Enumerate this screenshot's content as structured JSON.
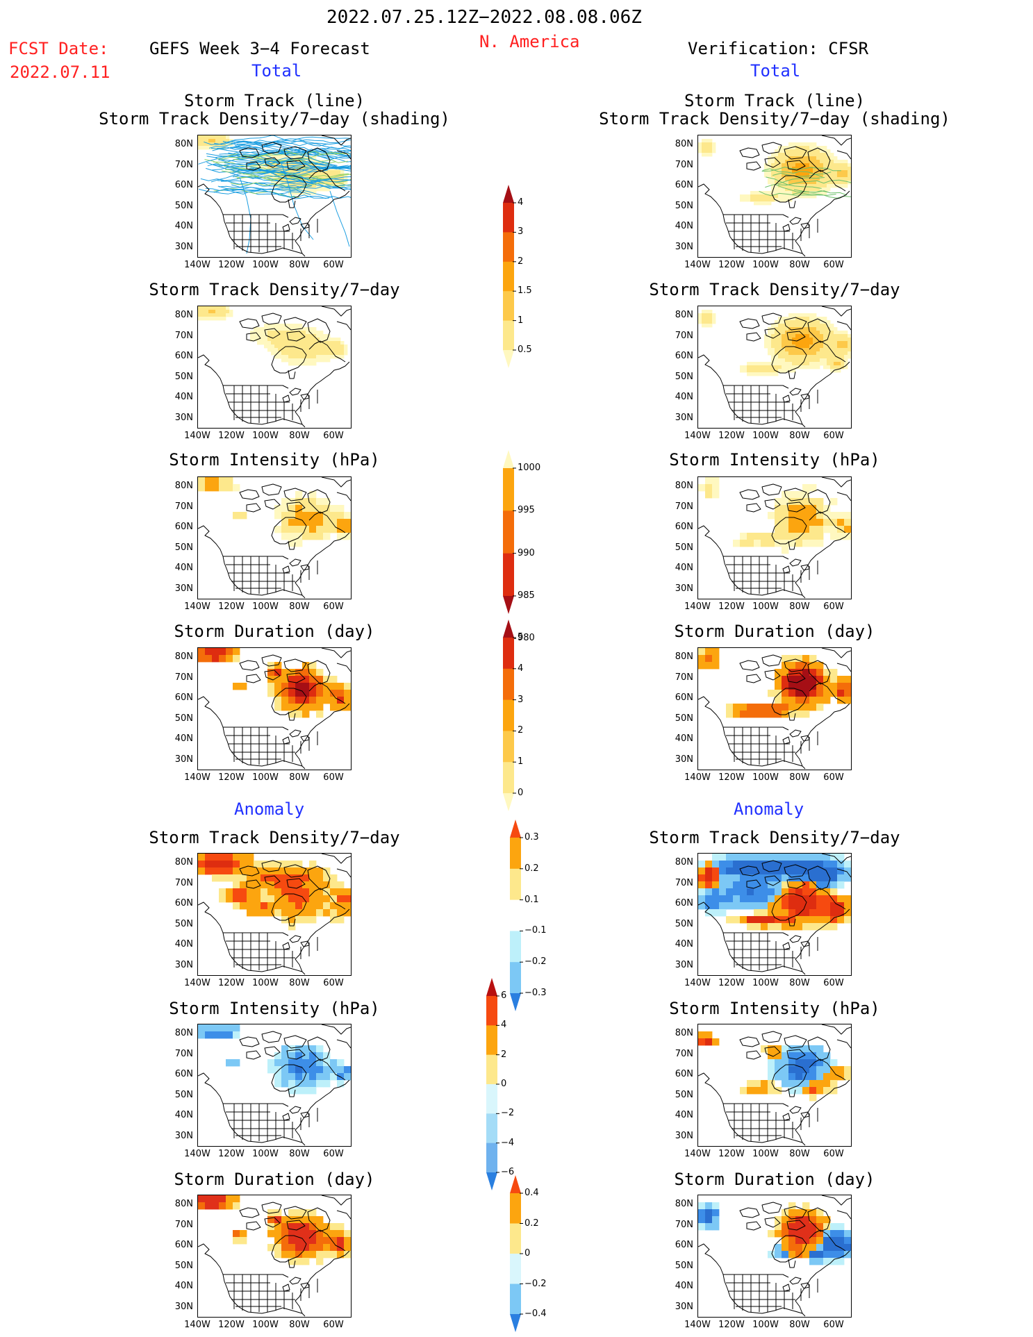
{
  "header": {
    "date_range": "2022.07.25.12Z−2022.08.08.06Z",
    "region": "N. America",
    "fcst_label": "FCST Date:",
    "fcst_date": "2022.07.11",
    "forecast_title": "GEFS Week 3−4 Forecast",
    "verification_title": "Verification: CFSR",
    "total_label": "Total",
    "anomaly_label": "Anomaly"
  },
  "panel_titles": {
    "track_line": "Storm Track (line)",
    "track_shading": "Storm Track Density/7−day (shading)",
    "density": "Storm Track Density/7−day",
    "intensity": "Storm Intensity (hPa)",
    "duration": "Storm Duration (day)"
  },
  "axis_labels": {
    "lat": [
      "80N",
      "70N",
      "60N",
      "50N",
      "40N",
      "30N"
    ],
    "lon": [
      "140W",
      "120W",
      "100W",
      "80W",
      "60W"
    ]
  },
  "colorbars": {
    "density_total": {
      "labels": [
        "4",
        "3",
        "2",
        "1.5",
        "1",
        "0.5"
      ],
      "colors": [
        "#a50f15",
        "#de2d10",
        "#f46d0a",
        "#fca50f",
        "#fdc94a",
        "#fde88c",
        "#fff8c0"
      ]
    },
    "intensity_total": {
      "labels": [
        "1000",
        "995",
        "990",
        "985",
        "980"
      ],
      "colors": [
        "#fff8c0",
        "#fca50f",
        "#f46d0a",
        "#de2d10",
        "#a50f15"
      ]
    },
    "duration_total": {
      "labels": [
        "5",
        "4",
        "3",
        "2",
        "1",
        "0"
      ],
      "colors": [
        "#a50f15",
        "#de2d10",
        "#f46d0a",
        "#fca50f",
        "#fdc94a",
        "#fde88c",
        "#fff8c0"
      ]
    },
    "density_anom": {
      "labels": [
        "0.3",
        "0.2",
        "0.1",
        "−0.1",
        "−0.2",
        "−0.3"
      ],
      "colors": [
        "#f64a10",
        "#fca50f",
        "#fde88c",
        "#ffffff",
        "#bdf0fa",
        "#7cc8f5",
        "#2a7fe0"
      ]
    },
    "intensity_anom": {
      "labels": [
        "6",
        "4",
        "2",
        "0",
        "−2",
        "−4",
        "−6"
      ],
      "colors": [
        "#b81010",
        "#f64a10",
        "#fca50f",
        "#fde88c",
        "#d9f6fc",
        "#a4dcf7",
        "#6fb2ee",
        "#2a7fe0"
      ]
    },
    "duration_anom": {
      "labels": [
        "0.4",
        "0.2",
        "0",
        "−0.2",
        "−0.4"
      ],
      "colors": [
        "#f64a10",
        "#fca50f",
        "#fde88c",
        "#d9f6fc",
        "#7cc8f5",
        "#2a7fe0"
      ]
    }
  },
  "palette": {
    "track_line_color": "#1a9de0",
    "track_line_alt": "#8fd06a",
    "border_color": "#000000",
    "title_red": "#ff2020",
    "title_blue": "#2030ff"
  }
}
